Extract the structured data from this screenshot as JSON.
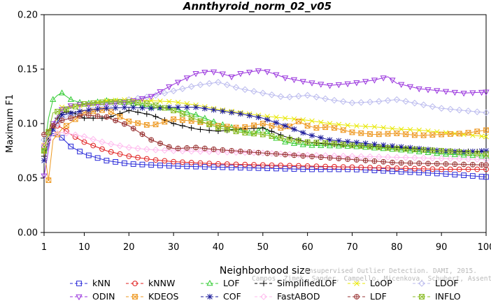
{
  "chart_data": {
    "type": "line",
    "title": "Annthyroid_norm_02_v05",
    "xlabel": "Neighborhood size",
    "ylabel": "Maximum F1",
    "xlim": [
      1,
      100
    ],
    "ylim": [
      0,
      0.2
    ],
    "xticks": [
      1,
      10,
      20,
      30,
      40,
      50,
      60,
      70,
      80,
      90,
      100
    ],
    "yticks": [
      0,
      0.05,
      0.1,
      0.15,
      0.2
    ],
    "ytick_labels": [
      "0.00",
      "0.05",
      "0.10",
      "0.15",
      "0.20"
    ],
    "grid": false,
    "legend_position": "bottom",
    "watermark": {
      "line1": "Unsupervised Outlier Detection. DAMI, 2015.",
      "line2": "Campos, Zimek, Sander, Campello, Micenkova, Schubert, Assent, Houle"
    },
    "series": [
      {
        "name": "kNN",
        "color": "#2a2ad8",
        "marker": "square",
        "points": [
          [
            1,
            0.078
          ],
          [
            2,
            0.088
          ],
          [
            3,
            0.091
          ],
          [
            4,
            0.09
          ],
          [
            5,
            0.087
          ],
          [
            7,
            0.079
          ],
          [
            10,
            0.072
          ],
          [
            15,
            0.066
          ],
          [
            20,
            0.063
          ],
          [
            30,
            0.061
          ],
          [
            40,
            0.06
          ],
          [
            50,
            0.059
          ],
          [
            60,
            0.058
          ],
          [
            70,
            0.058
          ],
          [
            80,
            0.056
          ],
          [
            90,
            0.054
          ],
          [
            100,
            0.051
          ]
        ]
      },
      {
        "name": "kNNW",
        "color": "#e02020",
        "marker": "circle",
        "points": [
          [
            1,
            0.08
          ],
          [
            2,
            0.092
          ],
          [
            3,
            0.097
          ],
          [
            4,
            0.098
          ],
          [
            5,
            0.096
          ],
          [
            7,
            0.09
          ],
          [
            10,
            0.083
          ],
          [
            15,
            0.075
          ],
          [
            20,
            0.07
          ],
          [
            25,
            0.067
          ],
          [
            30,
            0.065
          ],
          [
            40,
            0.063
          ],
          [
            50,
            0.062
          ],
          [
            60,
            0.061
          ],
          [
            70,
            0.06
          ],
          [
            80,
            0.059
          ],
          [
            90,
            0.058
          ],
          [
            100,
            0.058
          ]
        ]
      },
      {
        "name": "LOF",
        "color": "#33cc33",
        "marker": "triangle-up",
        "points": [
          [
            1,
            0.075
          ],
          [
            2,
            0.105
          ],
          [
            3,
            0.122
          ],
          [
            4,
            0.126
          ],
          [
            5,
            0.128
          ],
          [
            7,
            0.122
          ],
          [
            10,
            0.118
          ],
          [
            15,
            0.121
          ],
          [
            20,
            0.119
          ],
          [
            25,
            0.115
          ],
          [
            30,
            0.114
          ],
          [
            35,
            0.108
          ],
          [
            40,
            0.1
          ],
          [
            45,
            0.094
          ],
          [
            48,
            0.09
          ],
          [
            50,
            0.097
          ],
          [
            52,
            0.088
          ],
          [
            55,
            0.083
          ],
          [
            58,
            0.081
          ],
          [
            60,
            0.08
          ],
          [
            70,
            0.079
          ],
          [
            80,
            0.076
          ],
          [
            90,
            0.072
          ],
          [
            100,
            0.07
          ]
        ]
      },
      {
        "name": "SimplifiedLOF",
        "color": "#000000",
        "marker": "plus",
        "points": [
          [
            1,
            0.07
          ],
          [
            3,
            0.1
          ],
          [
            5,
            0.11
          ],
          [
            7,
            0.111
          ],
          [
            10,
            0.105
          ],
          [
            15,
            0.105
          ],
          [
            20,
            0.112
          ],
          [
            25,
            0.108
          ],
          [
            30,
            0.1
          ],
          [
            35,
            0.095
          ],
          [
            40,
            0.093
          ],
          [
            45,
            0.095
          ],
          [
            50,
            0.096
          ],
          [
            55,
            0.088
          ],
          [
            60,
            0.083
          ],
          [
            65,
            0.081
          ],
          [
            70,
            0.08
          ],
          [
            80,
            0.078
          ],
          [
            90,
            0.075
          ],
          [
            100,
            0.074
          ]
        ]
      },
      {
        "name": "LoOP",
        "color": "#e8e800",
        "marker": "x",
        "points": [
          [
            1,
            0.08
          ],
          [
            5,
            0.115
          ],
          [
            10,
            0.117
          ],
          [
            15,
            0.121
          ],
          [
            20,
            0.122
          ],
          [
            25,
            0.121
          ],
          [
            30,
            0.12
          ],
          [
            35,
            0.117
          ],
          [
            40,
            0.113
          ],
          [
            45,
            0.11
          ],
          [
            50,
            0.107
          ],
          [
            55,
            0.105
          ],
          [
            60,
            0.103
          ],
          [
            65,
            0.1
          ],
          [
            70,
            0.098
          ],
          [
            75,
            0.097
          ],
          [
            80,
            0.095
          ],
          [
            85,
            0.094
          ],
          [
            90,
            0.092
          ],
          [
            95,
            0.09
          ],
          [
            100,
            0.088
          ]
        ]
      },
      {
        "name": "LDOF",
        "color": "#bbbbee",
        "marker": "diamond",
        "points": [
          [
            1,
            0.085
          ],
          [
            5,
            0.105
          ],
          [
            10,
            0.11
          ],
          [
            15,
            0.117
          ],
          [
            20,
            0.122
          ],
          [
            25,
            0.125
          ],
          [
            30,
            0.13
          ],
          [
            35,
            0.135
          ],
          [
            40,
            0.138
          ],
          [
            45,
            0.132
          ],
          [
            50,
            0.128
          ],
          [
            55,
            0.124
          ],
          [
            60,
            0.126
          ],
          [
            65,
            0.122
          ],
          [
            70,
            0.119
          ],
          [
            75,
            0.12
          ],
          [
            80,
            0.122
          ],
          [
            85,
            0.118
          ],
          [
            90,
            0.114
          ],
          [
            95,
            0.112
          ],
          [
            100,
            0.11
          ]
        ]
      },
      {
        "name": "ODIN",
        "color": "#9933dd",
        "marker": "triangle-down",
        "points": [
          [
            1,
            0.052
          ],
          [
            3,
            0.1
          ],
          [
            5,
            0.113
          ],
          [
            8,
            0.118
          ],
          [
            10,
            0.117
          ],
          [
            15,
            0.118
          ],
          [
            20,
            0.12
          ],
          [
            25,
            0.125
          ],
          [
            30,
            0.136
          ],
          [
            33,
            0.142
          ],
          [
            35,
            0.146
          ],
          [
            38,
            0.148
          ],
          [
            40,
            0.147
          ],
          [
            43,
            0.143
          ],
          [
            45,
            0.146
          ],
          [
            48,
            0.148
          ],
          [
            50,
            0.149
          ],
          [
            53,
            0.145
          ],
          [
            55,
            0.142
          ],
          [
            60,
            0.138
          ],
          [
            65,
            0.135
          ],
          [
            70,
            0.137
          ],
          [
            75,
            0.14
          ],
          [
            78,
            0.143
          ],
          [
            80,
            0.137
          ],
          [
            85,
            0.132
          ],
          [
            90,
            0.13
          ],
          [
            95,
            0.128
          ],
          [
            100,
            0.129
          ]
        ]
      },
      {
        "name": "KDEOS",
        "color": "#ee9922",
        "marker": "square-x",
        "points": [
          [
            1,
            0.075
          ],
          [
            2,
            0.048
          ],
          [
            3,
            0.085
          ],
          [
            5,
            0.095
          ],
          [
            10,
            0.11
          ],
          [
            15,
            0.113
          ],
          [
            20,
            0.102
          ],
          [
            25,
            0.098
          ],
          [
            30,
            0.104
          ],
          [
            35,
            0.102
          ],
          [
            40,
            0.098
          ],
          [
            45,
            0.096
          ],
          [
            50,
            0.1
          ],
          [
            55,
            0.095
          ],
          [
            58,
            0.102
          ],
          [
            60,
            0.098
          ],
          [
            62,
            0.096
          ],
          [
            65,
            0.097
          ],
          [
            70,
            0.092
          ],
          [
            75,
            0.09
          ],
          [
            80,
            0.091
          ],
          [
            85,
            0.089
          ],
          [
            90,
            0.09
          ],
          [
            95,
            0.091
          ],
          [
            100,
            0.094
          ]
        ]
      },
      {
        "name": "COF",
        "color": "#1a1a99",
        "marker": "asterisk",
        "points": [
          [
            1,
            0.066
          ],
          [
            3,
            0.095
          ],
          [
            5,
            0.108
          ],
          [
            10,
            0.112
          ],
          [
            15,
            0.114
          ],
          [
            20,
            0.115
          ],
          [
            25,
            0.114
          ],
          [
            30,
            0.115
          ],
          [
            35,
            0.115
          ],
          [
            40,
            0.112
          ],
          [
            45,
            0.109
          ],
          [
            50,
            0.105
          ],
          [
            55,
            0.098
          ],
          [
            60,
            0.09
          ],
          [
            65,
            0.085
          ],
          [
            70,
            0.083
          ],
          [
            75,
            0.081
          ],
          [
            80,
            0.079
          ],
          [
            85,
            0.077
          ],
          [
            90,
            0.075
          ],
          [
            95,
            0.074
          ],
          [
            100,
            0.075
          ]
        ]
      },
      {
        "name": "FastABOD",
        "color": "#ffbbee",
        "marker": "diamond",
        "points": [
          [
            1,
            0.08
          ],
          [
            3,
            0.09
          ],
          [
            5,
            0.092
          ],
          [
            10,
            0.088
          ],
          [
            15,
            0.082
          ],
          [
            20,
            0.078
          ],
          [
            25,
            0.076
          ],
          [
            30,
            0.075
          ],
          [
            40,
            0.074
          ],
          [
            50,
            0.073
          ],
          [
            60,
            0.071
          ],
          [
            70,
            0.07
          ],
          [
            80,
            0.069
          ],
          [
            90,
            0.068
          ],
          [
            100,
            0.067
          ]
        ]
      },
      {
        "name": "LDF",
        "color": "#993333",
        "marker": "circle-plus",
        "points": [
          [
            1,
            0.09
          ],
          [
            3,
            0.098
          ],
          [
            5,
            0.103
          ],
          [
            10,
            0.108
          ],
          [
            15,
            0.106
          ],
          [
            20,
            0.098
          ],
          [
            25,
            0.085
          ],
          [
            30,
            0.077
          ],
          [
            35,
            0.078
          ],
          [
            40,
            0.076
          ],
          [
            50,
            0.073
          ],
          [
            60,
            0.07
          ],
          [
            70,
            0.067
          ],
          [
            80,
            0.064
          ],
          [
            90,
            0.063
          ],
          [
            100,
            0.062
          ]
        ]
      },
      {
        "name": "INFLO",
        "color": "#88bb22",
        "marker": "square-x",
        "points": [
          [
            1,
            0.075
          ],
          [
            3,
            0.11
          ],
          [
            5,
            0.112
          ],
          [
            10,
            0.118
          ],
          [
            15,
            0.12
          ],
          [
            20,
            0.12
          ],
          [
            25,
            0.118
          ],
          [
            30,
            0.112
          ],
          [
            35,
            0.104
          ],
          [
            40,
            0.096
          ],
          [
            45,
            0.092
          ],
          [
            50,
            0.09
          ],
          [
            55,
            0.086
          ],
          [
            60,
            0.083
          ],
          [
            65,
            0.082
          ],
          [
            70,
            0.08
          ],
          [
            80,
            0.077
          ],
          [
            90,
            0.075
          ],
          [
            100,
            0.072
          ]
        ]
      }
    ],
    "legend_rows": [
      [
        "kNN",
        "kNNW",
        "LOF",
        "SimplifiedLOF",
        "LoOP",
        "LDOF"
      ],
      [
        "ODIN",
        "KDEOS",
        "COF",
        "FastABOD",
        "LDF",
        "INFLO"
      ]
    ]
  }
}
